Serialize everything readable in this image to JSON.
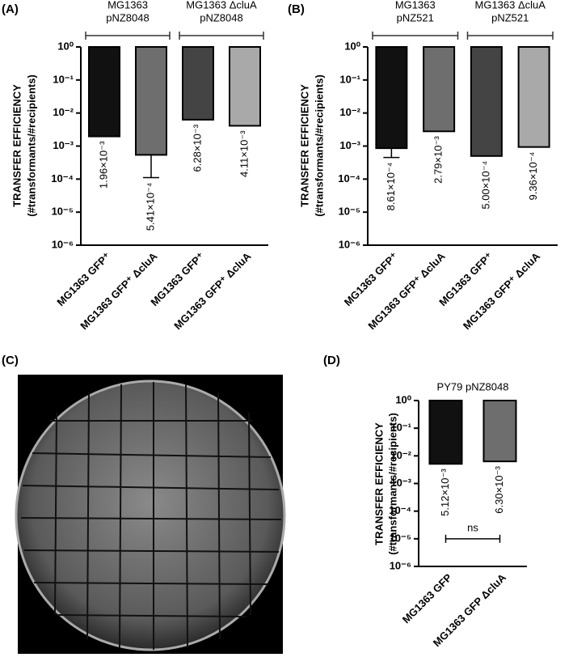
{
  "panel_labels": [
    "(A)",
    "(B)",
    "(C)",
    "(D)"
  ],
  "chart_data": [
    {
      "type": "bar",
      "yscale": "log",
      "ylabel": [
        "TRANSFER EFFICIENCY",
        "(#transformants/#recipients)"
      ],
      "groups": [
        [
          "MG1363",
          "pNZ8048"
        ],
        [
          "MG1363 ΔcluA",
          "pNZ8048"
        ]
      ],
      "categories": [
        "MG1363 GFP⁺",
        "MG1363 GFP⁺ ΔcluA",
        "MG1363 GFP⁺",
        "MG1363 GFP⁺ ΔcluA"
      ],
      "values": [
        0.00196,
        0.000541,
        0.00628,
        0.00411
      ],
      "value_labels": [
        "1.96×10⁻³",
        "5.41×10⁻⁴",
        "6.28×10⁻³",
        "4.11×10⁻³"
      ],
      "errors": [
        null,
        0.00043,
        null,
        null
      ],
      "colors": [
        "#111111",
        "#6e6e6e",
        "#444444",
        "#a9a9a9"
      ],
      "ylim": [
        1e-06,
        1
      ],
      "yticks": [
        {
          "value": 1,
          "label": "10⁰"
        },
        {
          "value": 0.1,
          "label": "10⁻¹"
        },
        {
          "value": 0.01,
          "label": "10⁻²"
        },
        {
          "value": 0.001,
          "label": "10⁻³"
        },
        {
          "value": 0.0001,
          "label": "10⁻⁴"
        },
        {
          "value": 1e-05,
          "label": "10⁻⁵"
        },
        {
          "value": 1e-06,
          "label": "10⁻⁶"
        }
      ]
    },
    {
      "type": "bar",
      "yscale": "log",
      "ylabel": [
        "TRANSFER EFFICIENCY",
        "(#transformants/#recipients)"
      ],
      "groups": [
        [
          "MG1363",
          "pNZ521"
        ],
        [
          "MG1363 ΔcluA",
          "pNZ521"
        ]
      ],
      "categories": [
        "MG1363 GFP⁺",
        "MG1363 GFP⁺ ΔcluA",
        "MG1363 GFP⁺",
        "MG1363 GFP⁺ ΔcluA"
      ],
      "values": [
        0.000861,
        0.00279,
        0.0005,
        0.000936
      ],
      "value_labels": [
        "8.61×10⁻⁴",
        "2.79×10⁻³",
        "5.00×10⁻⁴",
        "9.36×10⁻⁴"
      ],
      "errors": [
        0.00041,
        null,
        null,
        null
      ],
      "colors": [
        "#111111",
        "#6e6e6e",
        "#444444",
        "#a9a9a9"
      ],
      "ylim": [
        1e-06,
        1
      ],
      "yticks": [
        {
          "value": 1,
          "label": "10⁰"
        },
        {
          "value": 0.1,
          "label": "10⁻¹"
        },
        {
          "value": 0.01,
          "label": "10⁻²"
        },
        {
          "value": 0.001,
          "label": "10⁻³"
        },
        {
          "value": 0.0001,
          "label": "10⁻⁴"
        },
        {
          "value": 1e-05,
          "label": "10⁻⁵"
        },
        {
          "value": 1e-06,
          "label": "10⁻⁶"
        }
      ]
    },
    {
      "type": "bar",
      "yscale": "log",
      "title": "PY79 pNZ8048",
      "ylabel": [
        "TRANSFER EFFICIENCY",
        "(#transformants/#recipients)"
      ],
      "categories": [
        "MG1363 GFP",
        "MG1363 GFP ΔcluA"
      ],
      "values": [
        0.00512,
        0.0063
      ],
      "value_labels": [
        "5.12×10⁻³",
        "6.30×10⁻³"
      ],
      "errors": [
        null,
        null
      ],
      "colors": [
        "#111111",
        "#6e6e6e"
      ],
      "significance": {
        "label": "ns",
        "y": 1e-05
      },
      "ylim": [
        1e-06,
        1
      ],
      "yticks": [
        {
          "value": 1,
          "label": "10⁰"
        },
        {
          "value": 0.1,
          "label": "10⁻¹"
        },
        {
          "value": 0.01,
          "label": "10⁻²"
        },
        {
          "value": 0.001,
          "label": "10⁻³"
        },
        {
          "value": 0.0001,
          "label": "10⁻⁴"
        },
        {
          "value": 1e-05,
          "label": "10⁻⁵"
        },
        {
          "value": 1e-06,
          "label": "10⁻⁶"
        }
      ]
    }
  ]
}
